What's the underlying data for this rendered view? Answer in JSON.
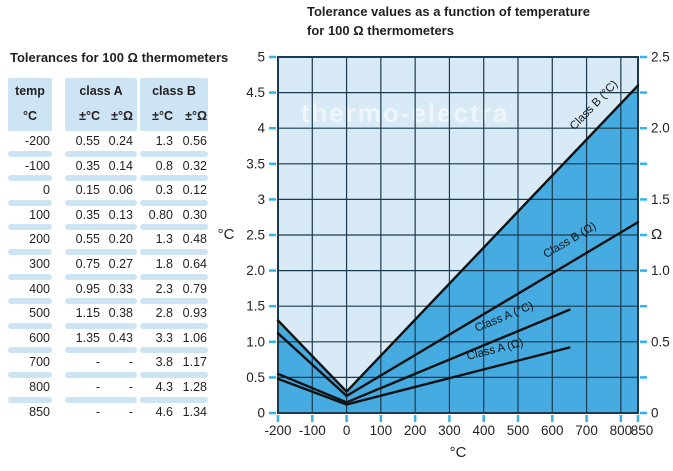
{
  "table": {
    "title": "Tolerances for 100 Ω thermometers",
    "groups": [
      {
        "name": "temp",
        "units": [
          "°C"
        ]
      },
      {
        "name": "class A",
        "units": [
          "±°C",
          "±°Ω"
        ]
      },
      {
        "name": "class B",
        "units": [
          "±°C",
          "±°Ω"
        ]
      }
    ],
    "rows": [
      [
        "-200",
        "0.55",
        "0.24",
        "1.3",
        "0.56"
      ],
      [
        "-100",
        "0.35",
        "0.14",
        "0.8",
        "0.32"
      ],
      [
        "0",
        "0.15",
        "0.06",
        "0.3",
        "0.12"
      ],
      [
        "100",
        "0.35",
        "0.13",
        "0.80",
        "0.30"
      ],
      [
        "200",
        "0.55",
        "0.20",
        "1.3",
        "0.48"
      ],
      [
        "300",
        "0.75",
        "0.27",
        "1.8",
        "0.64"
      ],
      [
        "400",
        "0.95",
        "0.33",
        "2.3",
        "0.79"
      ],
      [
        "500",
        "1.15",
        "0.38",
        "2.8",
        "0.93"
      ],
      [
        "600",
        "1.35",
        "0.43",
        "3.3",
        "1.06"
      ],
      [
        "700",
        "-",
        "-",
        "3.8",
        "1.17"
      ],
      [
        "800",
        "-",
        "-",
        "4.3",
        "1.28"
      ],
      [
        "850",
        "-",
        "-",
        "4.6",
        "1.34"
      ]
    ]
  },
  "chart": {
    "title_line1": "Tolerance values as a function of temperature",
    "title_line2": "for 100 Ω thermometers",
    "watermark": "thermo-electra"
  },
  "chart_data": {
    "type": "line",
    "title": "Tolerance values as a function of temperature for 100 Ω thermometers",
    "xlabel": "°C",
    "ylabel_left": "°C",
    "ylabel_right": "Ω",
    "xlim": [
      -200,
      850
    ],
    "ylim_left": [
      0,
      5
    ],
    "ylim_right": [
      0,
      2.5
    ],
    "grid": true,
    "x_gridlines": [
      -200,
      -100,
      0,
      100,
      200,
      300,
      400,
      500,
      600,
      700,
      800,
      850
    ],
    "x_tick_labels": [
      "-200",
      "-100",
      "0",
      "100",
      "200",
      "300",
      "400",
      "500",
      "600",
      "700",
      "800",
      "850"
    ],
    "y_gridlines_left": [
      0,
      0.5,
      1,
      1.5,
      2,
      2.5,
      3,
      3.5,
      4,
      4.5,
      5
    ],
    "y_tick_labels_left": [
      "0",
      "0.5",
      "1.0",
      "1.5",
      "2.0",
      "2.5",
      "3",
      "3.5",
      "4",
      "4.5",
      "5"
    ],
    "y_tick_labels_right": [
      {
        "at_left_value": 5,
        "label": "2.5"
      },
      {
        "at_left_value": 4,
        "label": "2.0"
      },
      {
        "at_left_value": 3,
        "label": "1.5"
      },
      {
        "at_left_value": 2,
        "label": "1.0"
      },
      {
        "at_left_value": 1,
        "label": "0.5"
      },
      {
        "at_left_value": 0,
        "label": "0"
      }
    ],
    "series": [
      {
        "name": "Class B (°C)",
        "axis": "left",
        "x": [
          -200,
          0,
          850
        ],
        "y": [
          1.3,
          0.3,
          4.6
        ],
        "fill_below": true,
        "label_at_x": 760,
        "label_offset": 15
      },
      {
        "name": "Class B (Ω)",
        "axis": "right",
        "x": [
          -200,
          0,
          850
        ],
        "y": [
          0.56,
          0.12,
          1.34
        ],
        "fill_below": false,
        "label_at_x": 680,
        "label_offset": 16
      },
      {
        "name": "Class A (°C)",
        "axis": "left",
        "x": [
          -200,
          0,
          650
        ],
        "y": [
          0.55,
          0.15,
          1.45
        ],
        "fill_below": false,
        "label_at_x": 480,
        "label_offset": 15
      },
      {
        "name": "Class A (Ω)",
        "axis": "right",
        "x": [
          -200,
          0,
          650
        ],
        "y": [
          0.24,
          0.06,
          0.46
        ],
        "fill_below": false,
        "label_at_x": 445,
        "label_offset": 13
      }
    ],
    "colors": {
      "plot_bg": "#d9eaf7",
      "fill_below_line": "#45abe0",
      "grid": "#1b3a50",
      "line": "#111111",
      "tick": "#2fb5ea",
      "text": "#231f20",
      "table_block": "#cde4f5",
      "watermark": "#ffffff"
    }
  }
}
